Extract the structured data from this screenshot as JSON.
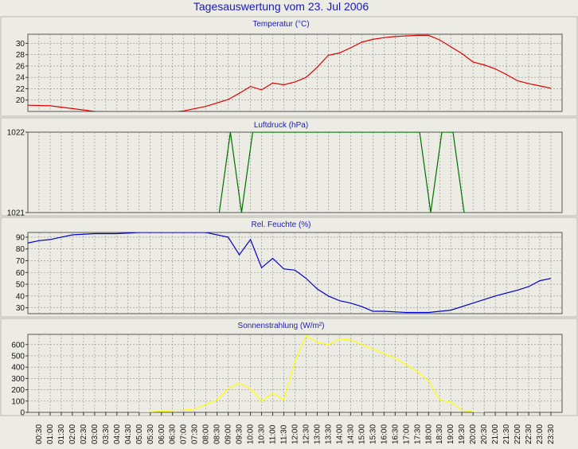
{
  "page": {
    "title": "Tagesauswertung vom 23. Jul 2006"
  },
  "colors": {
    "background": "#ecece4",
    "grid": "#8a8a8a",
    "title": "#1a1ab4",
    "temperature": "#e00000",
    "pressure": "#007000",
    "humidity": "#0000cc",
    "radiation": "#ffff00"
  },
  "chart_data": [
    {
      "type": "line",
      "title": "Temperatur (°C)",
      "xlabel": "",
      "ylabel": "",
      "grid": true,
      "ylim": [
        18,
        31.6
      ],
      "yticks": [
        "20",
        "22",
        "24",
        "26",
        "28",
        "30"
      ],
      "ytick_values": [
        20,
        22,
        24,
        26,
        28,
        30
      ],
      "x_hours": [
        0,
        1,
        2,
        3,
        4,
        5,
        6,
        7,
        8,
        9,
        9.5,
        10,
        10.5,
        11,
        11.5,
        12,
        12.5,
        13,
        13.5,
        14,
        14.5,
        15,
        15.5,
        16,
        16.5,
        17,
        17.5,
        18,
        18.5,
        19,
        19.5,
        20,
        20.5,
        21,
        21.5,
        22,
        22.5,
        23,
        23.5
      ],
      "series": [
        {
          "color": "#e00000",
          "values": [
            19.1,
            19.0,
            18.5,
            18.0,
            17.9,
            17.7,
            17.7,
            18.1,
            18.9,
            20.1,
            21.2,
            22.4,
            21.8,
            23.0,
            22.7,
            23.2,
            24.0,
            25.8,
            27.9,
            28.3,
            29.2,
            30.2,
            30.7,
            31.0,
            31.2,
            31.3,
            31.4,
            31.4,
            30.6,
            29.4,
            28.2,
            26.7,
            26.2,
            25.5,
            24.5,
            23.4,
            22.9,
            22.5,
            22.1
          ]
        }
      ]
    },
    {
      "type": "line",
      "title": "Luftdruck (hPa)",
      "xlabel": "",
      "ylabel": "",
      "grid": true,
      "ylim": [
        1021,
        1022
      ],
      "yticks": [
        "1021",
        "1022"
      ],
      "ytick_values": [
        1021,
        1022
      ],
      "x_hours": [
        8.6,
        9.1,
        9.6,
        10.1,
        17.6,
        18.1,
        18.6,
        19.1,
        19.6
      ],
      "series": [
        {
          "color": "#007000",
          "values": [
            1021,
            1022,
            1021,
            1022,
            1022,
            1021,
            1022,
            1022,
            1021
          ]
        }
      ]
    },
    {
      "type": "line",
      "title": "Rel. Feuchte (%)",
      "xlabel": "",
      "ylabel": "",
      "grid": true,
      "ylim": [
        25,
        94
      ],
      "yticks": [
        "30",
        "40",
        "50",
        "60",
        "70",
        "80",
        "90"
      ],
      "ytick_values": [
        30,
        40,
        50,
        60,
        70,
        80,
        90
      ],
      "x_hours": [
        0,
        0.5,
        1,
        1.5,
        2,
        3,
        4,
        5,
        6,
        7,
        8,
        9,
        9.5,
        10,
        10.5,
        11,
        11.5,
        12,
        12.5,
        13,
        13.5,
        14,
        14.5,
        15,
        15.5,
        16,
        17,
        18,
        19,
        20,
        21,
        22,
        22.5,
        23,
        23.5
      ],
      "series": [
        {
          "color": "#0000cc",
          "values": [
            85,
            87,
            88,
            90,
            92,
            93,
            93,
            94,
            94,
            94,
            94,
            90,
            75,
            88,
            64,
            72,
            63,
            62,
            55,
            46,
            40,
            36,
            34,
            31,
            27,
            27,
            26,
            26,
            28,
            34,
            40,
            45,
            48,
            53,
            55
          ]
        }
      ]
    },
    {
      "type": "line",
      "title": "Sonnenstrahlung (W/m²)",
      "xlabel": "",
      "ylabel": "",
      "grid": true,
      "ylim": [
        0,
        690
      ],
      "yticks": [
        "0",
        "100",
        "200",
        "300",
        "400",
        "500",
        "600"
      ],
      "ytick_values": [
        0,
        100,
        200,
        300,
        400,
        500,
        600
      ],
      "x_hours": [
        5,
        6,
        7,
        7.5,
        8,
        8.5,
        9,
        9.5,
        10,
        10.5,
        11,
        11.5,
        12,
        12.5,
        13,
        13.5,
        14,
        14.5,
        15,
        15.5,
        16,
        16.5,
        17,
        17.5,
        18,
        18.5,
        19,
        19.5,
        20,
        20.5
      ],
      "series": [
        {
          "color": "#ffff00",
          "values": [
            0,
            10,
            20,
            30,
            70,
            110,
            210,
            260,
            210,
            100,
            170,
            110,
            450,
            680,
            620,
            600,
            650,
            640,
            600,
            560,
            520,
            480,
            420,
            360,
            280,
            110,
            90,
            20,
            5,
            0
          ]
        }
      ]
    }
  ],
  "x_axis": {
    "labels": [
      "00:30",
      "01:00",
      "01:30",
      "02:00",
      "02:30",
      "03:00",
      "03:30",
      "04:00",
      "04:30",
      "05:00",
      "05:30",
      "06:00",
      "06:30",
      "07:00",
      "07:30",
      "08:00",
      "08:30",
      "09:00",
      "09:30",
      "10:00",
      "10:30",
      "11:00",
      "11:30",
      "12:00",
      "12:30",
      "13:00",
      "13:30",
      "14:00",
      "14:30",
      "15:00",
      "15:30",
      "16:00",
      "16:30",
      "17:00",
      "17:30",
      "18:00",
      "18:30",
      "19:00",
      "19:30",
      "20:00",
      "20:30",
      "21:00",
      "21:30",
      "22:00",
      "22:30",
      "23:00",
      "23:30"
    ]
  }
}
